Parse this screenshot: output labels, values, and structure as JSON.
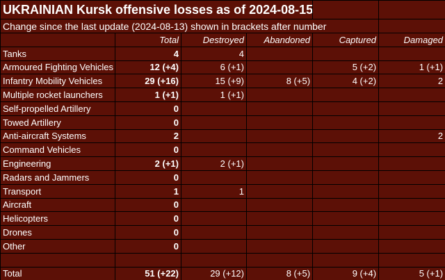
{
  "title": "UKRAINIAN Kursk offensive losses as of 2024-08-15",
  "subtitle": "Change since the last update (2024-08-13) shown in brackets after number",
  "columns": [
    "Total",
    "Destroyed",
    "Abandoned",
    "Captured",
    "Damaged"
  ],
  "rows": [
    {
      "label": "Tanks",
      "values": [
        "4",
        "4",
        "",
        "",
        ""
      ]
    },
    {
      "label": "Armoured Fighting Vehicles",
      "values": [
        "12 (+4)",
        "6 (+1)",
        "",
        "5 (+2)",
        "1 (+1)"
      ]
    },
    {
      "label": "Infantry Mobility Vehicles",
      "values": [
        "29 (+16)",
        "15 (+9)",
        "8 (+5)",
        "4 (+2)",
        "2"
      ]
    },
    {
      "label": "Multiple rocket launchers",
      "values": [
        "1 (+1)",
        "1 (+1)",
        "",
        "",
        ""
      ]
    },
    {
      "label": "Self-propelled Artillery",
      "values": [
        "0",
        "",
        "",
        "",
        ""
      ]
    },
    {
      "label": "Towed Artillery",
      "values": [
        "0",
        "",
        "",
        "",
        ""
      ]
    },
    {
      "label": "Anti-aircraft Systems",
      "values": [
        "2",
        "",
        "",
        "",
        "2"
      ]
    },
    {
      "label": "Command Vehicles",
      "values": [
        "0",
        "",
        "",
        "",
        ""
      ]
    },
    {
      "label": "Engineering",
      "values": [
        "2 (+1)",
        "2 (+1)",
        "",
        "",
        ""
      ]
    },
    {
      "label": "Radars and Jammers",
      "values": [
        "0",
        "",
        "",
        "",
        ""
      ]
    },
    {
      "label": "Transport",
      "values": [
        "1",
        "1",
        "",
        "",
        ""
      ]
    },
    {
      "label": "Aircraft",
      "values": [
        "0",
        "",
        "",
        "",
        ""
      ]
    },
    {
      "label": "Helicopters",
      "values": [
        "0",
        "",
        "",
        "",
        ""
      ]
    },
    {
      "label": "Drones",
      "values": [
        "0",
        "",
        "",
        "",
        ""
      ]
    },
    {
      "label": "Other",
      "values": [
        "0",
        "",
        "",
        "",
        ""
      ]
    }
  ],
  "total": {
    "label": "Total",
    "values": [
      "51 (+22)",
      "29 (+12)",
      "8 (+5)",
      "9 (+4)",
      "5 (+1)"
    ]
  },
  "colors": {
    "cell": "#5c1006",
    "border": "#000000",
    "text": "#ffffff"
  }
}
